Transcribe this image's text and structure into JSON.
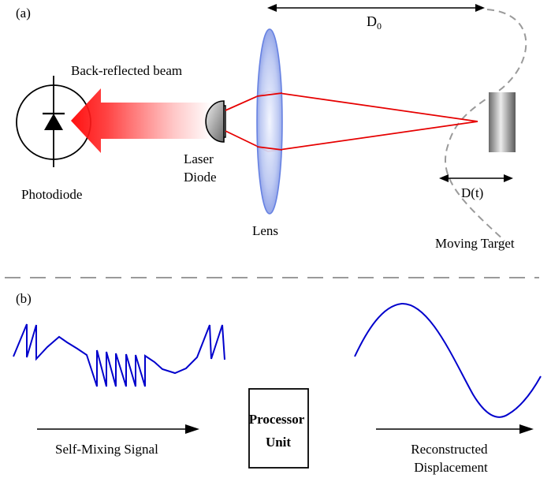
{
  "panel_a": {
    "label": "(a)",
    "back_reflected_beam": "Back-reflected beam",
    "laser_diode_line1": "Laser",
    "laser_diode_line2": "Diode",
    "photodiode": "Photodiode",
    "lens": "Lens",
    "distance_d0_base": "D",
    "distance_d0_sub": "0",
    "distance_dt": "D(t)",
    "moving_target": "Moving Target"
  },
  "panel_b": {
    "label": "(b)",
    "self_mixing_signal": "Self-Mixing Signal",
    "processor_line1": "Processor",
    "processor_line2": "Unit",
    "reconstructed_line1": "Reconstructed",
    "reconstructed_line2": "Displacement"
  },
  "colors": {
    "laser_beam": "#e60000",
    "signal": "#0000cc",
    "lens": "#a9b8f0",
    "dashes": "#9a9a9a"
  }
}
